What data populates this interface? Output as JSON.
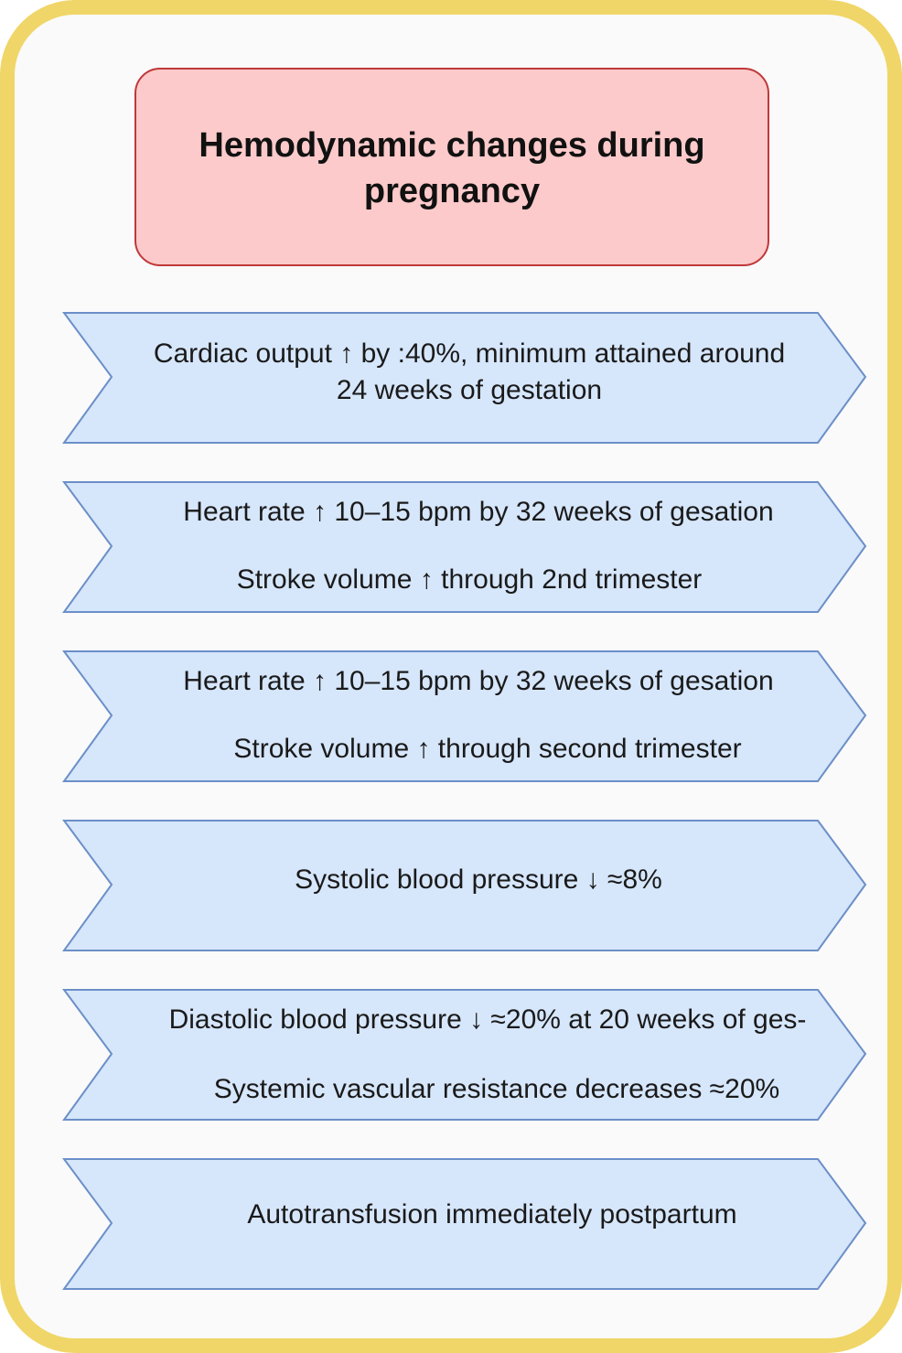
{
  "title": "Hemodynamic changes during pregnancy",
  "steps": [
    {
      "lines": [
        "Cardiac output ↑ by :40%, minimum attained around",
        "24 weeks of gestation"
      ]
    },
    {
      "lines": [
        "Heart rate ↑ 10–15 bpm by 32 weeks of gesation",
        "Stroke volume ↑ through 2nd trimester"
      ]
    },
    {
      "lines": [
        "Heart rate ↑ 10–15 bpm by 32 weeks of gesation",
        "Stroke volume ↑ through second trimester"
      ]
    },
    {
      "lines": [
        "Systolic blood pressure ↓ ≈8%"
      ]
    },
    {
      "lines": [
        "Diastolic blood pressure ↓ ≈20% at 20 weeks of ges-",
        "Systemic vascular resistance decreases ≈20%"
      ]
    },
    {
      "lines": [
        "Autotransfusion immediately postpartum"
      ]
    }
  ],
  "colors": {
    "frame_border": "#f0d668",
    "title_fill": "#fccaca",
    "title_border": "#c0383a",
    "chevron_fill": "#d6e6fb",
    "chevron_border": "#6b8fc8"
  }
}
